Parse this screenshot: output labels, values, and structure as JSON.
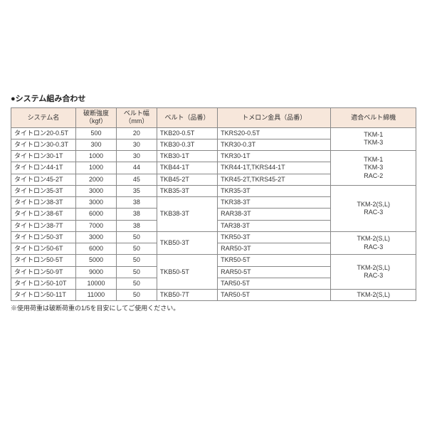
{
  "title": "●システム組み合わせ",
  "headers": {
    "c1": "システム名",
    "c2_l1": "破断強度",
    "c2_l2": "（kgf）",
    "c3_l1": "ベルト幅",
    "c3_l2": "（mm）",
    "c4": "ベルト（品番）",
    "c5": "トメロン金具（品番）",
    "c6": "適合ベルト締機"
  },
  "r": [
    {
      "sys": "タイトロン20-0.5T",
      "str": "500",
      "w": "20",
      "belt": "TKB20-0.5T",
      "fit": "TKRS20-0.5T"
    },
    {
      "sys": "タイトロン30-0.3T",
      "str": "300",
      "w": "30",
      "belt": "TKB30-0.3T",
      "fit": "TKR30-0.3T"
    },
    {
      "sys": "タイトロン30-1T",
      "str": "1000",
      "w": "30",
      "belt": "TKB30-1T",
      "fit": "TKR30-1T"
    },
    {
      "sys": "タイトロン44-1T",
      "str": "1000",
      "w": "44",
      "belt": "TKB44-1T",
      "fit": "TKR44-1T,TKRS44-1T"
    },
    {
      "sys": "タイトロン45-2T",
      "str": "2000",
      "w": "45",
      "belt": "TKB45-2T",
      "fit": "TKR45-2T,TKRS45-2T"
    },
    {
      "sys": "タイトロン35-3T",
      "str": "3000",
      "w": "35",
      "belt": "TKB35-3T",
      "fit": "TKR35-3T"
    },
    {
      "sys": "タイトロン38-3T",
      "str": "3000",
      "w": "38",
      "belt": "TKB38-3T",
      "fit": "TKR38-3T"
    },
    {
      "sys": "タイトロン38-6T",
      "str": "6000",
      "w": "38",
      "fit": "RAR38-3T"
    },
    {
      "sys": "タイトロン38-7T",
      "str": "7000",
      "w": "38",
      "fit": "TAR38-3T"
    },
    {
      "sys": "タイトロン50-3T",
      "str": "3000",
      "w": "50",
      "belt": "TKB50-3T",
      "fit": "TKR50-3T"
    },
    {
      "sys": "タイトロン50-6T",
      "str": "6000",
      "w": "50",
      "fit": "RAR50-3T"
    },
    {
      "sys": "タイトロン50-5T",
      "str": "5000",
      "w": "50",
      "belt": "TKB50-5T",
      "fit": "TKR50-5T"
    },
    {
      "sys": "タイトロン50-9T",
      "str": "9000",
      "w": "50",
      "fit": "RAR50-5T"
    },
    {
      "sys": "タイトロン50-10T",
      "str": "10000",
      "w": "50",
      "fit": "TAR50-5T"
    },
    {
      "sys": "タイトロン50-11T",
      "str": "11000",
      "w": "50",
      "belt": "TKB50-7T",
      "fit": "TAR50-5T"
    }
  ],
  "mach": {
    "g1_l1": "TKM-1",
    "g1_l2": "TKM-3",
    "g2_l1": "TKM-1",
    "g2_l2": "TKM-3",
    "g2_l3": "RAC-2",
    "g3_l1": "TKM-2(S,L)",
    "g3_l2": "RAC-3",
    "g4_l1": "TKM-2(S,L)",
    "g4_l2": "RAC-3",
    "g5_l1": "TKM-2(S,L)",
    "g5_l2": "RAC-3",
    "g6": "TKM-2(S,L)"
  },
  "note": "※使用荷重は破断荷重の1/5を目安にしてご使用ください。",
  "colors": {
    "header_bg": "#f7e7db",
    "border": "#888888",
    "text": "#333333"
  }
}
